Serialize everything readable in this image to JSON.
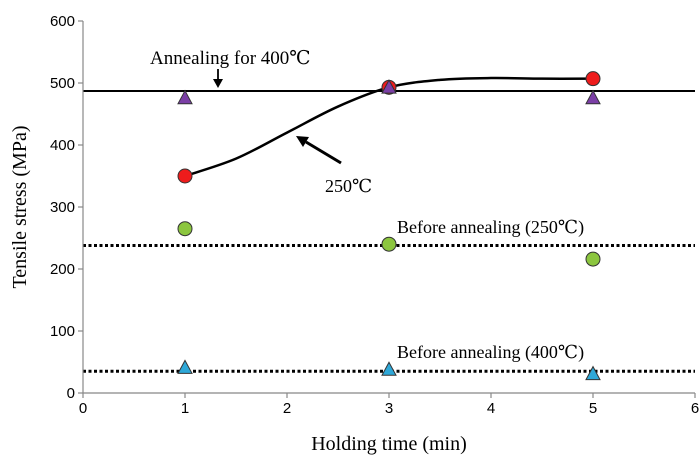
{
  "chart_data": {
    "type": "scatter",
    "xlabel": "Holding time (min)",
    "ylabel": "Tensile stress (MPa)",
    "xlim": [
      0,
      6
    ],
    "ylim": [
      0,
      600
    ],
    "xticks": [
      "0",
      "1",
      "2",
      "3",
      "4",
      "5",
      "6"
    ],
    "yticks": [
      "0",
      "100",
      "200",
      "300",
      "400",
      "500",
      "600"
    ],
    "grid": false,
    "series": [
      {
        "marker": "circle",
        "color": "#ee1c1c",
        "x": [
          1,
          3,
          5
        ],
        "y": [
          350,
          493,
          507
        ]
      },
      {
        "marker": "triangle",
        "color": "#7b3fa6",
        "x": [
          1,
          3,
          5
        ],
        "y": [
          475,
          492,
          475
        ]
      },
      {
        "marker": "circle",
        "color": "#8cc63f",
        "x": [
          1,
          3,
          5
        ],
        "y": [
          265,
          240,
          216
        ]
      },
      {
        "marker": "triangle",
        "color": "#2ea8d8",
        "x": [
          1,
          3,
          5
        ],
        "y": [
          40,
          37,
          30
        ]
      }
    ],
    "trend_curve": {
      "x": [
        1,
        1.5,
        2,
        2.5,
        3,
        3.5,
        4,
        4.5,
        5
      ],
      "y": [
        350,
        378,
        420,
        462,
        493,
        505,
        508,
        507,
        507
      ]
    },
    "reference_lines": [
      {
        "y": 487,
        "style": "solid",
        "label": "Annealing for 400℃"
      },
      {
        "y": 238,
        "style": "dotted",
        "label": "Before annealing (250℃)"
      },
      {
        "y": 35,
        "style": "dotted",
        "label": "Before annealing (400℃)"
      }
    ],
    "annotations": [
      {
        "text": "250℃"
      }
    ]
  }
}
